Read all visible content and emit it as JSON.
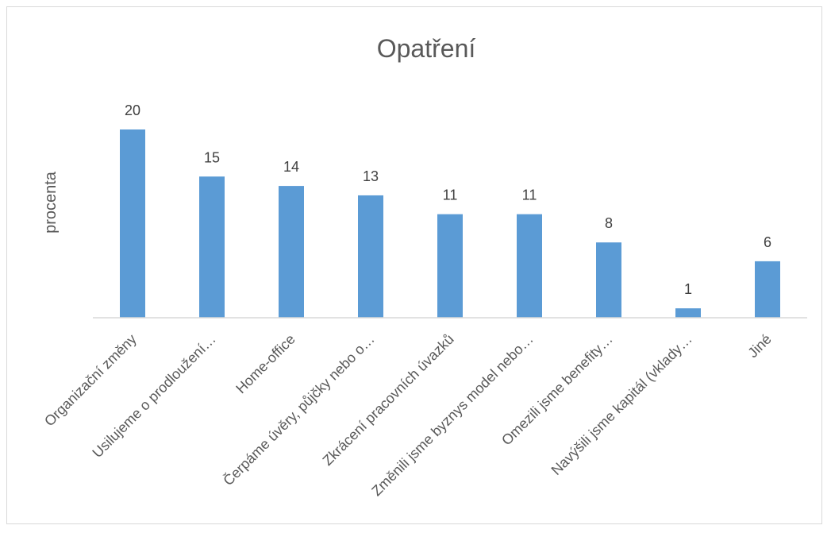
{
  "chart_data": {
    "type": "bar",
    "title": "Opatření",
    "xlabel": "",
    "ylabel": "procenta",
    "categories": [
      "Organizační změny",
      "Usilujeme o prodloužení…",
      "Home-office",
      "Čerpáme úvěry, půjčky nebo o…",
      "Zkrácení pracovních úvazků",
      "Změnili jsme byznys model nebo…",
      "Omezili jsme benefity…",
      "Navýšili jsme kapitál (vklady…",
      "Jiné"
    ],
    "values": [
      20,
      15,
      14,
      13,
      11,
      11,
      8,
      1,
      6
    ],
    "ylim": [
      0,
      20
    ],
    "grid": false,
    "legend": "none",
    "colors": {
      "bar": "#5b9bd5",
      "axis": "#d9d9d9"
    }
  }
}
